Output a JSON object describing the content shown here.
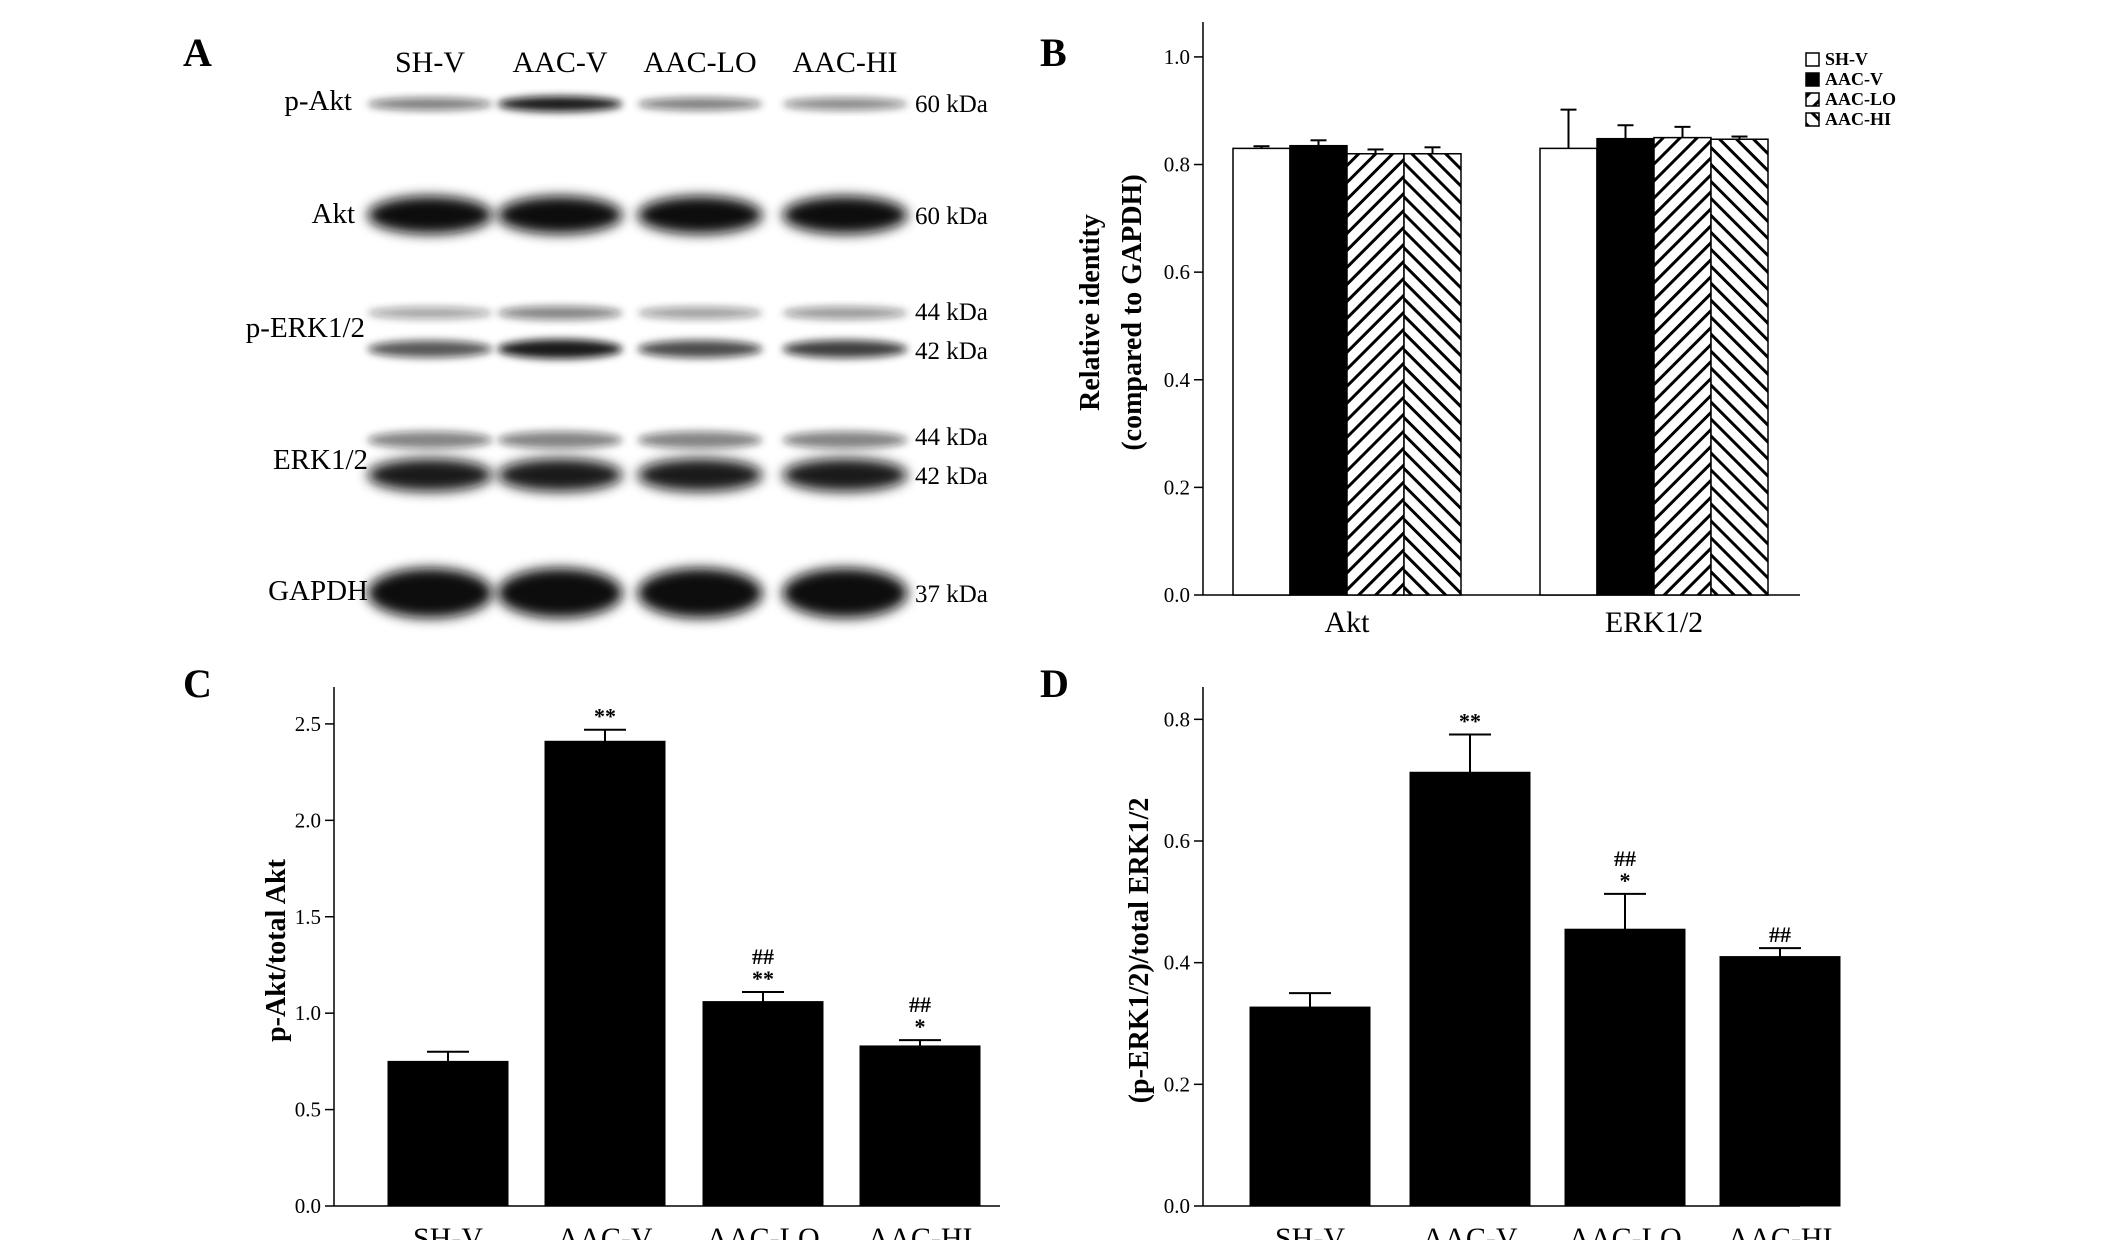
{
  "panels": {
    "A": {
      "letter": "A",
      "lanes": [
        "SH-V",
        "AAC-V",
        "AAC-LO",
        "AAC-HI"
      ],
      "rows": [
        {
          "label": "p-Akt",
          "kda": [
            "60 kDa"
          ],
          "intensity": [
            0.55,
            0.95,
            0.55,
            0.5
          ]
        },
        {
          "label": "Akt",
          "kda": [
            "60 kDa"
          ],
          "intensity": [
            1,
            1,
            1,
            1
          ]
        },
        {
          "label": "p-ERK1/2",
          "kda": [
            "44 kDa",
            "42 kDa"
          ],
          "intensity": [
            0.7,
            0.95,
            0.75,
            0.8
          ]
        },
        {
          "label": "ERK1/2",
          "kda": [
            "44 kDa",
            "42 kDa"
          ],
          "intensity": [
            0.95,
            0.95,
            0.95,
            0.95
          ]
        },
        {
          "label": "GAPDH",
          "kda": [
            "37 kDa"
          ],
          "intensity": [
            1,
            1,
            1,
            1
          ]
        }
      ]
    },
    "B": {
      "letter": "B"
    },
    "C": {
      "letter": "C"
    },
    "D": {
      "letter": "D"
    }
  },
  "chart_data": [
    {
      "panel": "B",
      "type": "bar",
      "categories": [
        "Akt",
        "ERK1/2"
      ],
      "series": [
        {
          "name": "SH-V",
          "values": [
            0.83,
            0.83
          ],
          "err": [
            0.004,
            0.072
          ],
          "fill": "white"
        },
        {
          "name": "AAC-V",
          "values": [
            0.835,
            0.848
          ],
          "err": [
            0.01,
            0.025
          ],
          "fill": "black"
        },
        {
          "name": "AAC-LO",
          "values": [
            0.82,
            0.85
          ],
          "err": [
            0.008,
            0.02
          ],
          "fill": "hatch-right"
        },
        {
          "name": "AAC-HI",
          "values": [
            0.82,
            0.847
          ],
          "err": [
            0.012,
            0.005
          ],
          "fill": "hatch-left"
        }
      ],
      "ylabel": [
        "Relative identity",
        "(compared to GAPDH)"
      ],
      "ylim": [
        0,
        1.05
      ],
      "yticks": [
        "0.0",
        "0.2",
        "0.4",
        "0.6",
        "0.8",
        "1.0"
      ],
      "legend": "top-right"
    },
    {
      "panel": "C",
      "type": "bar",
      "categories": [
        "SH-V",
        "AAC-V",
        "AAC-LO",
        "AAC-HI"
      ],
      "values": [
        0.75,
        2.41,
        1.06,
        0.83
      ],
      "err": [
        0.05,
        0.06,
        0.05,
        0.03
      ],
      "sig": [
        [],
        [
          "**"
        ],
        [
          "##",
          "**"
        ],
        [
          "##",
          "*"
        ]
      ],
      "ylabel": [
        "p-Akt/total Akt"
      ],
      "ylim": [
        0,
        2.65
      ],
      "yticks": [
        "0.0",
        "0.5",
        "1.0",
        "1.5",
        "2.0",
        "2.5"
      ]
    },
    {
      "panel": "D",
      "type": "bar",
      "categories": [
        "SH-V",
        "AAC-V",
        "AAC-LO",
        "AAC-HI"
      ],
      "values": [
        0.327,
        0.713,
        0.455,
        0.41
      ],
      "err": [
        0.023,
        0.062,
        0.058,
        0.014
      ],
      "sig": [
        [],
        [
          "**"
        ],
        [
          "##",
          "*"
        ],
        [
          "##"
        ]
      ],
      "ylabel": [
        "(p-ERK1/2)/total ERK1/2"
      ],
      "ylim": [
        0,
        0.84
      ],
      "yticks": [
        "0.0",
        "0.2",
        "0.4",
        "0.6",
        "0.8"
      ]
    }
  ]
}
